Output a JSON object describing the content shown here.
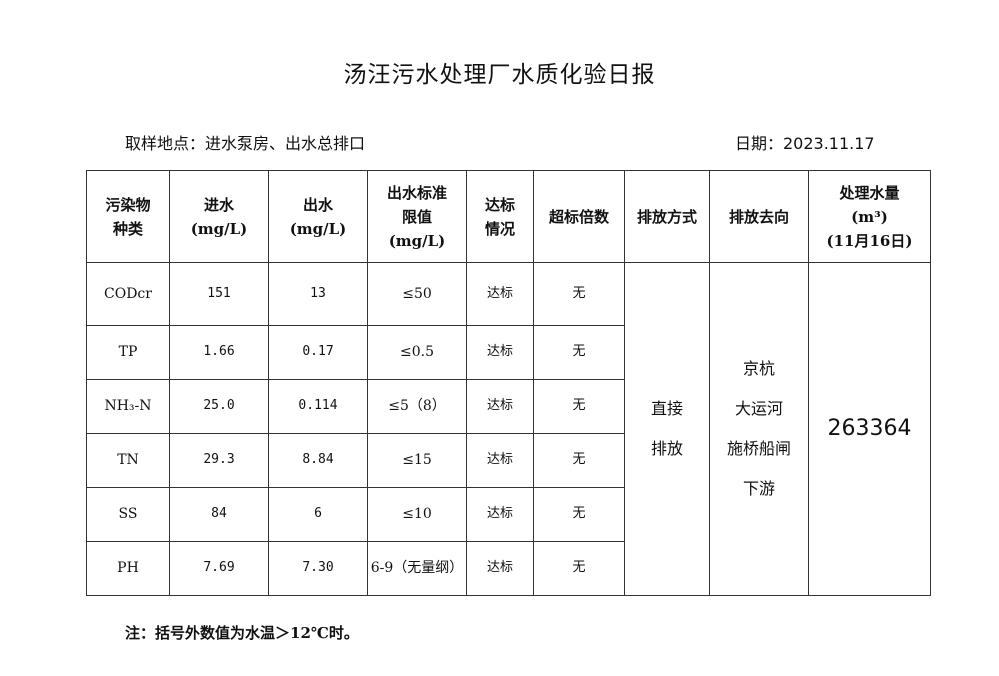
{
  "title": "汤汪污水处理厂水质化验日报",
  "location": "取样地点：进水泵房、出水总排口",
  "date": "日期：2023.11.17",
  "headers": {
    "pollutant": [
      "污染物",
      "种类"
    ],
    "inflow": [
      "进水",
      "(mg/L)"
    ],
    "outflow": [
      "出水",
      "(mg/L)"
    ],
    "limit": [
      "出水标准",
      "限值",
      "(mg/L)"
    ],
    "status": [
      "达标",
      "情况"
    ],
    "exceed": "超标倍数",
    "method": "排放方式",
    "destination": "排放去向",
    "volume": [
      "处理水量",
      "(m³)",
      "(11月16日)"
    ]
  },
  "rows": [
    {
      "name": "CODcr",
      "in": "151",
      "out": "13",
      "limit": "≤50",
      "status": "达标",
      "exceed": "无"
    },
    {
      "name": "TP",
      "in": "1.66",
      "out": "0.17",
      "limit": "≤0.5",
      "status": "达标",
      "exceed": "无"
    },
    {
      "name": "NH₃-N",
      "in": "25.0",
      "out": "0.114",
      "limit": "≤5（8）",
      "status": "达标",
      "exceed": "无"
    },
    {
      "name": "TN",
      "in": "29.3",
      "out": "8.84",
      "limit": "≤15",
      "status": "达标",
      "exceed": "无"
    },
    {
      "name": "SS",
      "in": "84",
      "out": "6",
      "limit": "≤10",
      "status": "达标",
      "exceed": "无"
    },
    {
      "name": "PH",
      "in": "7.69",
      "out": "7.30",
      "limit": "6-9（无量纲）",
      "status": "达标",
      "exceed": "无"
    }
  ],
  "method": [
    "直接",
    "排放"
  ],
  "destination": [
    "京杭",
    "大运河",
    "施桥船闸",
    "下游"
  ],
  "volume": "263364",
  "note": "注：括号外数值为水温＞12℃时。"
}
